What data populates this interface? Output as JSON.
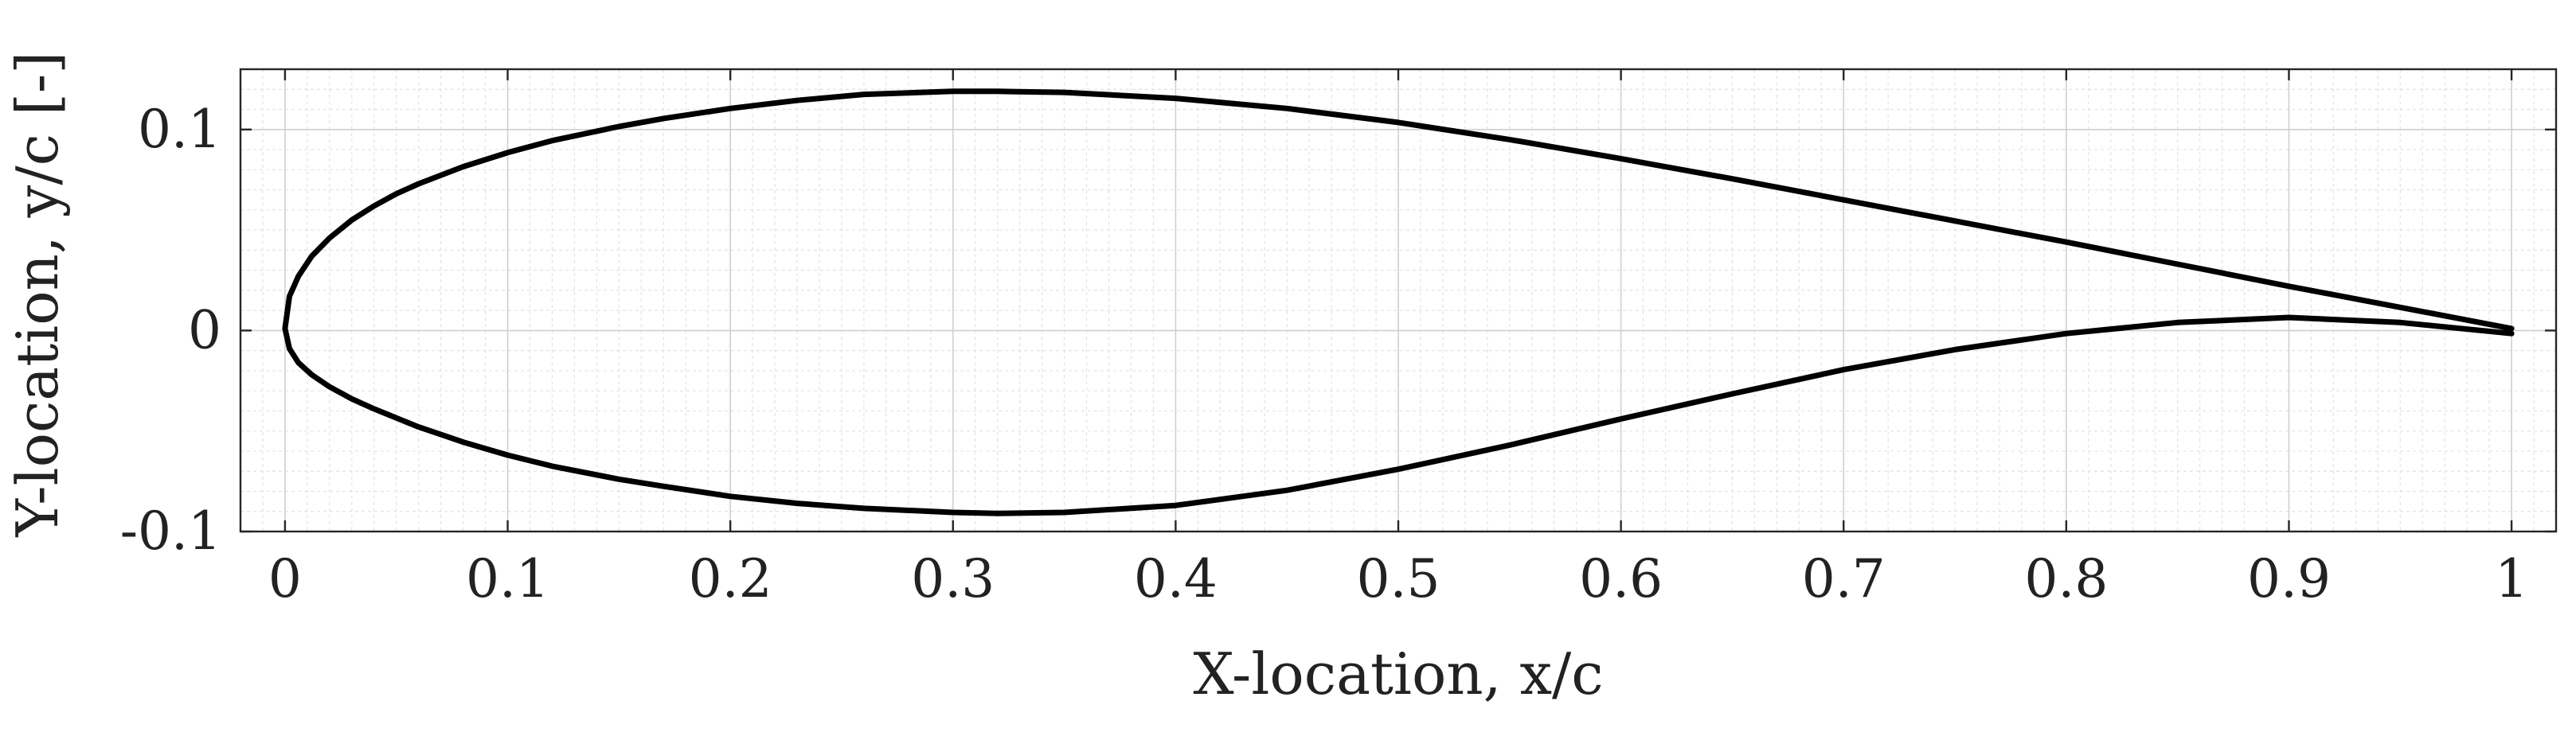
{
  "chart_data": {
    "type": "line",
    "title": "",
    "xlabel": "X-location, x/c",
    "ylabel": "Y-location, y/c [-]",
    "xlim": [
      -0.02,
      1.02
    ],
    "ylim": [
      -0.1,
      0.13
    ],
    "grid": "on (major and minor)",
    "legend": "none",
    "x_ticks": [
      {
        "value": 0,
        "label": "0"
      },
      {
        "value": 0.1,
        "label": "0.1"
      },
      {
        "value": 0.2,
        "label": "0.2"
      },
      {
        "value": 0.3,
        "label": "0.3"
      },
      {
        "value": 0.4,
        "label": "0.4"
      },
      {
        "value": 0.5,
        "label": "0.5"
      },
      {
        "value": 0.6,
        "label": "0.6"
      },
      {
        "value": 0.7,
        "label": "0.7"
      },
      {
        "value": 0.8,
        "label": "0.8"
      },
      {
        "value": 0.9,
        "label": "0.9"
      },
      {
        "value": 1,
        "label": "1"
      }
    ],
    "y_ticks": [
      {
        "value": -0.1,
        "label": "-0.1"
      },
      {
        "value": 0,
        "label": "0"
      },
      {
        "value": 0.1,
        "label": "0.1"
      }
    ],
    "series": [
      {
        "color": "#000000",
        "x": [
          1.0,
          0.95,
          0.9,
          0.85,
          0.8,
          0.75,
          0.7,
          0.65,
          0.6,
          0.55,
          0.5,
          0.45,
          0.4,
          0.35,
          0.32,
          0.3,
          0.26,
          0.23,
          0.2,
          0.17,
          0.15,
          0.12,
          0.1,
          0.08,
          0.06,
          0.05,
          0.04,
          0.03,
          0.02,
          0.012,
          0.006,
          0.002,
          0.0,
          0.002,
          0.006,
          0.012,
          0.02,
          0.03,
          0.04,
          0.05,
          0.06,
          0.08,
          0.1,
          0.12,
          0.15,
          0.17,
          0.2,
          0.23,
          0.26,
          0.3,
          0.32,
          0.35,
          0.4,
          0.45,
          0.5,
          0.55,
          0.6,
          0.65,
          0.7,
          0.75,
          0.8,
          0.85,
          0.9,
          0.95,
          1.0
        ],
        "y": [
          0.001,
          0.0115,
          0.022,
          0.033,
          0.044,
          0.0545,
          0.065,
          0.0755,
          0.0855,
          0.095,
          0.1035,
          0.1105,
          0.1155,
          0.1185,
          0.119,
          0.119,
          0.1175,
          0.1145,
          0.1105,
          0.1055,
          0.1015,
          0.0945,
          0.0885,
          0.0815,
          0.073,
          0.068,
          0.062,
          0.055,
          0.046,
          0.037,
          0.027,
          0.017,
          0.001,
          -0.009,
          -0.016,
          -0.022,
          -0.028,
          -0.034,
          -0.039,
          -0.0435,
          -0.048,
          -0.0555,
          -0.062,
          -0.0675,
          -0.074,
          -0.0775,
          -0.0825,
          -0.086,
          -0.0885,
          -0.0905,
          -0.091,
          -0.0905,
          -0.087,
          -0.0795,
          -0.069,
          -0.057,
          -0.044,
          -0.0315,
          -0.0195,
          -0.0095,
          -0.0015,
          0.004,
          0.0065,
          0.004,
          -0.0015
        ]
      }
    ]
  }
}
